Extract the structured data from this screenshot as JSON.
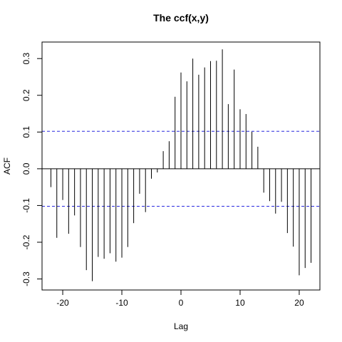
{
  "chart_data": {
    "type": "bar",
    "title": "The ccf(x,y)",
    "xlabel": "Lag",
    "ylabel": "ACF",
    "xlim": [
      -23.5,
      23.5
    ],
    "ylim": [
      -0.33,
      0.345
    ],
    "x_ticks": [
      -20,
      -10,
      0,
      10,
      20
    ],
    "x_tick_labels": [
      "-20",
      "-10",
      "0",
      "10",
      "20"
    ],
    "y_ticks": [
      -0.3,
      -0.2,
      -0.1,
      0.0,
      0.1,
      0.2,
      0.3
    ],
    "y_tick_labels": [
      "-0.3",
      "-0.2",
      "-0.1",
      "0.0",
      "0.1",
      "0.2",
      "0.3"
    ],
    "ci_level": 0.102,
    "ci_color": "#2a2adf",
    "line_color": "#000000",
    "grid": false,
    "lags": [
      -22,
      -21,
      -20,
      -19,
      -18,
      -17,
      -16,
      -15,
      -14,
      -13,
      -12,
      -11,
      -10,
      -9,
      -8,
      -7,
      -6,
      -5,
      -4,
      -3,
      -2,
      -1,
      0,
      1,
      2,
      3,
      4,
      5,
      6,
      7,
      8,
      9,
      10,
      11,
      12,
      13,
      14,
      15,
      16,
      17,
      18,
      19,
      20,
      21,
      22
    ],
    "values": [
      -0.05,
      -0.188,
      -0.085,
      -0.177,
      -0.127,
      -0.213,
      -0.276,
      -0.306,
      -0.24,
      -0.245,
      -0.23,
      -0.253,
      -0.242,
      -0.213,
      -0.148,
      -0.068,
      -0.118,
      -0.027,
      -0.01,
      0.048,
      0.075,
      0.196,
      0.262,
      0.238,
      0.3,
      0.256,
      0.276,
      0.293,
      0.294,
      0.325,
      0.176,
      0.27,
      0.162,
      0.149,
      0.101,
      0.06,
      -0.065,
      -0.088,
      -0.122,
      -0.09,
      -0.175,
      -0.212,
      -0.29,
      -0.27,
      -0.256
    ]
  }
}
